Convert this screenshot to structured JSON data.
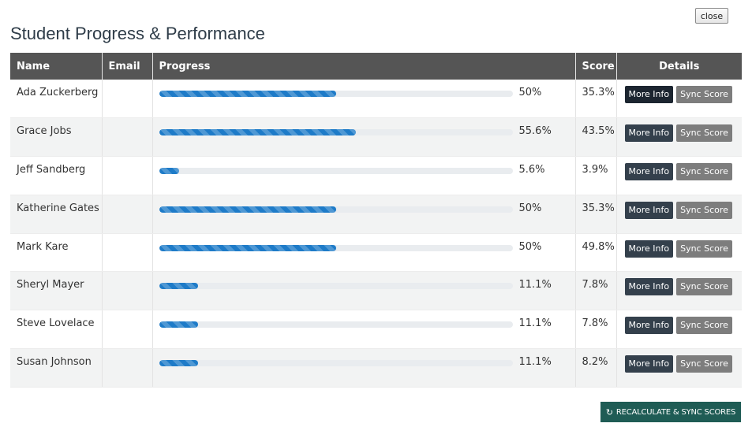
{
  "close_label": "close",
  "title": "Student Progress & Performance",
  "columns": {
    "name": "Name",
    "email": "Email",
    "progress": "Progress",
    "score": "Score",
    "details": "Details"
  },
  "buttons": {
    "more_info": "More Info",
    "sync_score": "Sync Score",
    "recalculate": "RECALCULATE & SYNC SCORES"
  },
  "icons": {
    "recalculate": "refresh-icon"
  },
  "colors": {
    "header_bg": "#555555",
    "progress_fill": "#1e7bc8",
    "more_info_bg": "#34404c",
    "sync_bg": "#7d7d7d",
    "recalc_bg": "#1f5c55"
  },
  "students": [
    {
      "name": "Ada Zuckerberg",
      "email": "",
      "progress": 50,
      "progress_label": "50%",
      "score": "35.3%"
    },
    {
      "name": "Grace Jobs",
      "email": "",
      "progress": 55.6,
      "progress_label": "55.6%",
      "score": "43.5%"
    },
    {
      "name": "Jeff Sandberg",
      "email": "",
      "progress": 5.6,
      "progress_label": "5.6%",
      "score": "3.9%"
    },
    {
      "name": "Katherine Gates",
      "email": "",
      "progress": 50,
      "progress_label": "50%",
      "score": "35.3%"
    },
    {
      "name": "Mark Kare",
      "email": "",
      "progress": 50,
      "progress_label": "50%",
      "score": "49.8%"
    },
    {
      "name": "Sheryl Mayer",
      "email": "",
      "progress": 11.1,
      "progress_label": "11.1%",
      "score": "7.8%"
    },
    {
      "name": "Steve Lovelace",
      "email": "",
      "progress": 11.1,
      "progress_label": "11.1%",
      "score": "7.8%"
    },
    {
      "name": "Susan Johnson",
      "email": "",
      "progress": 11.1,
      "progress_label": "11.1%",
      "score": "8.2%"
    }
  ]
}
